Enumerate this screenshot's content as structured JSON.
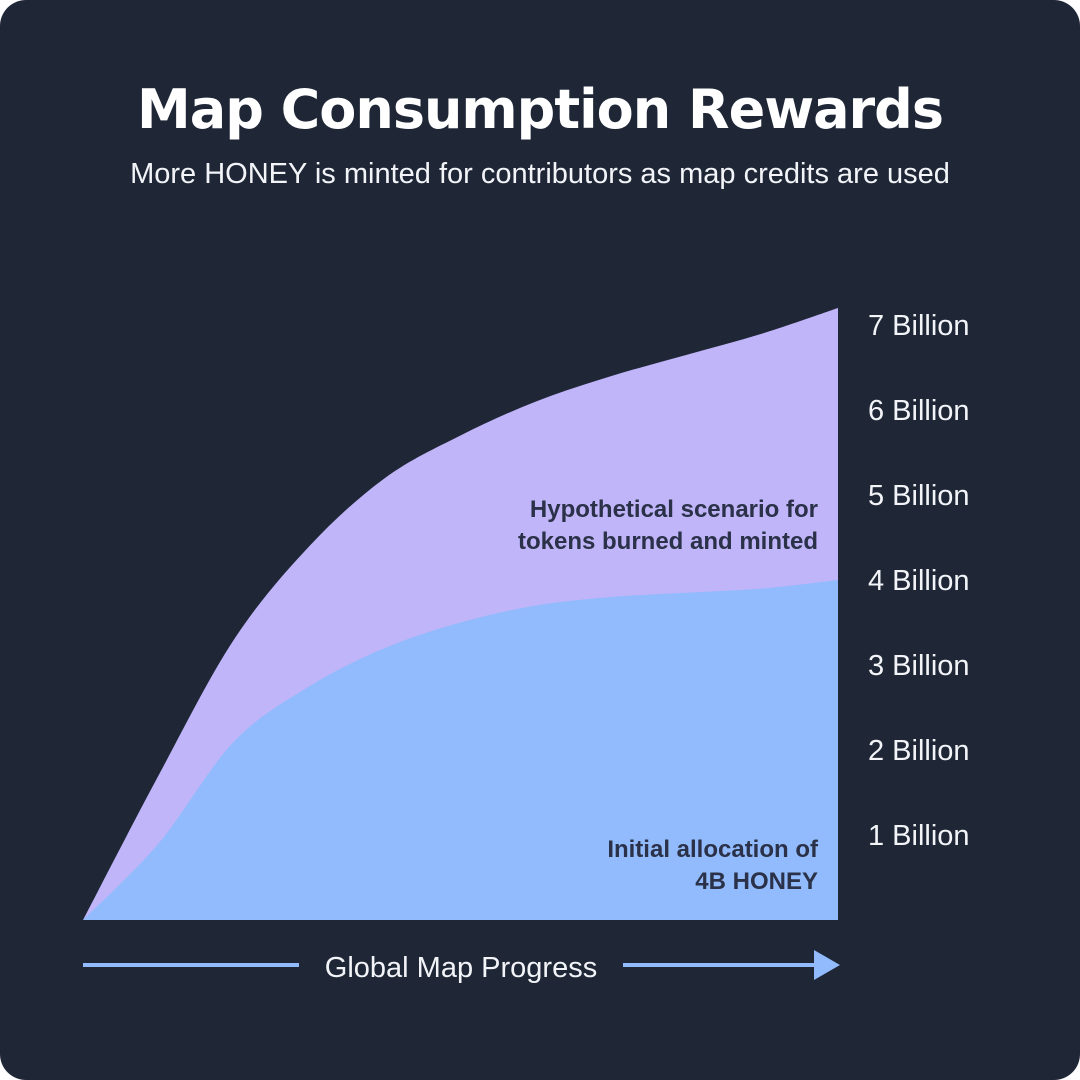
{
  "colors": {
    "background": "#1f2737",
    "upper_area": "#c0b5f9",
    "lower_area": "#91bbfc",
    "axis_arrow": "#91bbfc",
    "text": "#f2f4f8",
    "annotation_text": "#2a3148"
  },
  "chart_data": {
    "type": "area",
    "title": "Map Consumption Rewards",
    "subtitle": "More HONEY is minted for contributors as map credits are used",
    "xlabel": "Global Map Progress",
    "ylabel": "",
    "ylim": [
      0,
      7.2
    ],
    "y_axis_position": "right",
    "y_ticks": [
      {
        "value": 1,
        "label": "1 Billion"
      },
      {
        "value": 2,
        "label": "2 Billion"
      },
      {
        "value": 3,
        "label": "3 Billion"
      },
      {
        "value": 4,
        "label": "4 Billion"
      },
      {
        "value": 5,
        "label": "5 Billion"
      },
      {
        "value": 6,
        "label": "6 Billion"
      },
      {
        "value": 7,
        "label": "7 Billion"
      }
    ],
    "grid": false,
    "x": [
      0,
      0.1,
      0.2,
      0.3,
      0.4,
      0.5,
      0.6,
      0.7,
      0.8,
      0.9,
      1.0
    ],
    "series": [
      {
        "values": [
          0,
          1.7,
          3.3,
          4.4,
          5.2,
          5.7,
          6.1,
          6.4,
          6.65,
          6.9,
          7.2
        ],
        "annotation": [
          "Hypothetical scenario for",
          "tokens burned and minted"
        ]
      },
      {
        "values": [
          0,
          0.9,
          2.1,
          2.75,
          3.2,
          3.5,
          3.7,
          3.8,
          3.85,
          3.9,
          4.0
        ],
        "annotation": [
          "Initial allocation of",
          "4B HONEY"
        ]
      }
    ]
  }
}
